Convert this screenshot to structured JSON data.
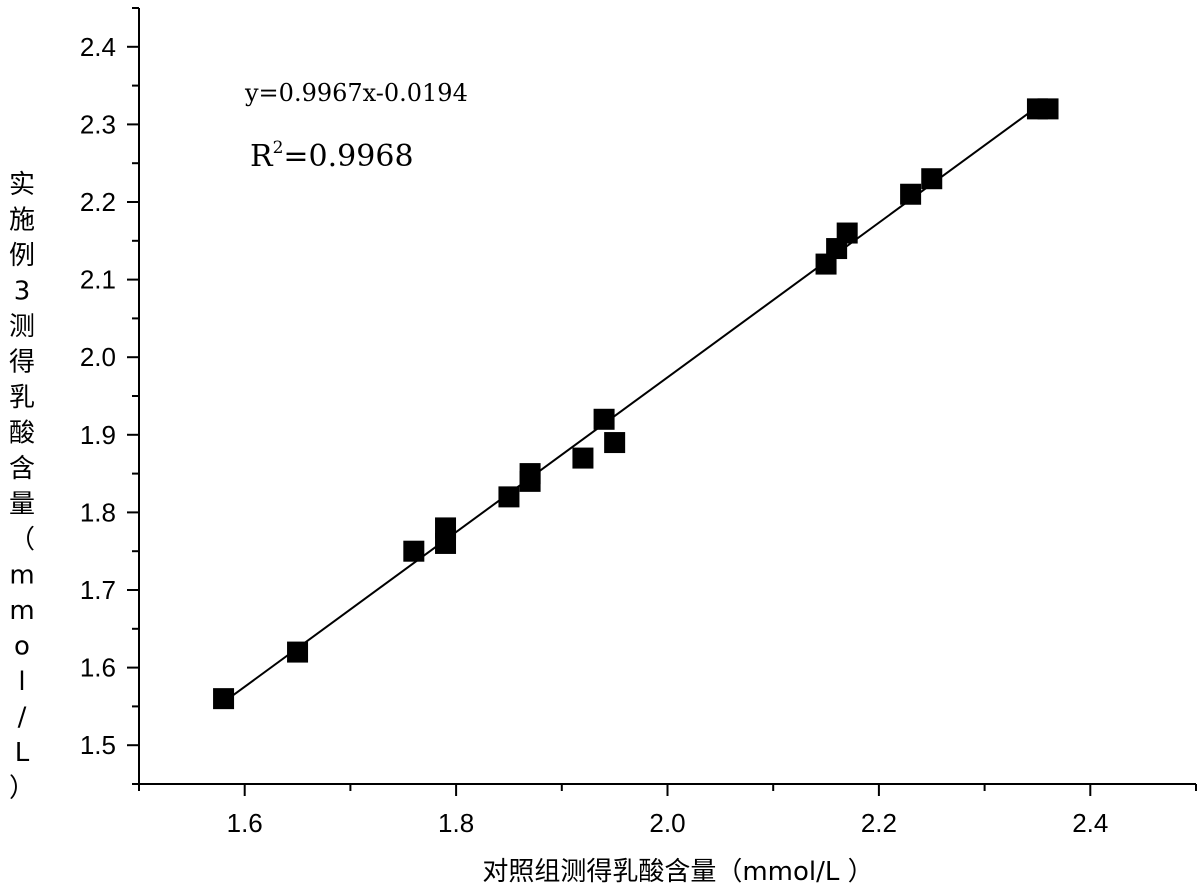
{
  "chart_data": {
    "type": "scatter",
    "title": "",
    "xlabel": "对照组测得乳酸含量（mmol/L ）",
    "ylabel": "实施例3测得乳酸含量（mmol/L）",
    "xlim": [
      1.5,
      2.5
    ],
    "ylim": [
      1.45,
      2.45
    ],
    "x_ticks": [
      "1.6",
      "1.8",
      "2.0",
      "2.2",
      "2.4"
    ],
    "y_ticks": [
      "1.5",
      "1.6",
      "1.7",
      "1.8",
      "1.9",
      "2.0",
      "2.1",
      "2.2",
      "2.3",
      "2.4"
    ],
    "grid": false,
    "legend": "none",
    "marker": "square",
    "marker_color": "#000000",
    "points": [
      {
        "x": 1.58,
        "y": 1.56
      },
      {
        "x": 1.65,
        "y": 1.62
      },
      {
        "x": 1.76,
        "y": 1.75
      },
      {
        "x": 1.79,
        "y": 1.76
      },
      {
        "x": 1.79,
        "y": 1.78
      },
      {
        "x": 1.85,
        "y": 1.82
      },
      {
        "x": 1.87,
        "y": 1.84
      },
      {
        "x": 1.87,
        "y": 1.85
      },
      {
        "x": 1.92,
        "y": 1.87
      },
      {
        "x": 1.94,
        "y": 1.92
      },
      {
        "x": 1.95,
        "y": 1.89
      },
      {
        "x": 2.15,
        "y": 2.12
      },
      {
        "x": 2.16,
        "y": 2.14
      },
      {
        "x": 2.17,
        "y": 2.16
      },
      {
        "x": 2.23,
        "y": 2.21
      },
      {
        "x": 2.25,
        "y": 2.23
      },
      {
        "x": 2.35,
        "y": 2.32
      },
      {
        "x": 2.36,
        "y": 2.32
      }
    ],
    "fit_line": {
      "slope": 0.9967,
      "intercept": -0.0194,
      "x_start": 1.58,
      "x_end": 2.35
    },
    "annotations": {
      "equation": "y=0.9967x-0.0194",
      "r2_prefix": "R",
      "r2_superscript": "2",
      "r2_value": "=0.9968"
    }
  }
}
